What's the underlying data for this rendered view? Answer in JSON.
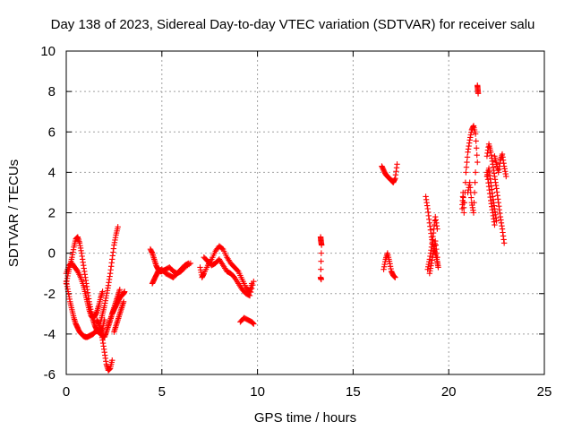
{
  "chart_data": {
    "type": "scatter",
    "title": "Day 138 of 2023, Sidereal Day-to-day VTEC variation (SDTVAR) for receiver salu",
    "xlabel": "GPS time / hours",
    "ylabel": "SDTVAR / TECUs",
    "xlim": [
      0,
      25
    ],
    "ylim": [
      -6,
      10
    ],
    "xticks": [
      0,
      5,
      10,
      15,
      20,
      25
    ],
    "yticks": [
      -6,
      -4,
      -2,
      0,
      2,
      4,
      6,
      8,
      10
    ],
    "grid": true,
    "marker": "+",
    "color": "#ff0000",
    "series": [
      {
        "name": "SDTVAR",
        "segments": [
          [
            [
              0.0,
              -1.5
            ],
            [
              0.1,
              -1.0
            ],
            [
              0.2,
              -0.6
            ],
            [
              0.3,
              -0.2
            ],
            [
              0.4,
              0.3
            ],
            [
              0.5,
              0.7
            ],
            [
              0.6,
              0.8
            ],
            [
              0.7,
              0.5
            ],
            [
              0.8,
              0.0
            ],
            [
              0.9,
              -0.6
            ],
            [
              1.0,
              -1.2
            ],
            [
              1.1,
              -1.8
            ],
            [
              1.2,
              -2.4
            ],
            [
              1.3,
              -2.9
            ],
            [
              1.4,
              -3.3
            ],
            [
              1.5,
              -3.6
            ],
            [
              1.6,
              -3.8
            ],
            [
              1.7,
              -3.9
            ],
            [
              1.8,
              -3.9
            ],
            [
              1.9,
              -3.7
            ],
            [
              2.0,
              -3.3
            ]
          ],
          [
            [
              0.0,
              -1.4
            ],
            [
              0.1,
              -1.9
            ],
            [
              0.2,
              -2.4
            ],
            [
              0.3,
              -2.8
            ],
            [
              0.4,
              -3.2
            ],
            [
              0.5,
              -3.5
            ],
            [
              0.6,
              -3.7
            ],
            [
              0.7,
              -3.9
            ],
            [
              0.8,
              -4.0
            ],
            [
              0.9,
              -4.1
            ],
            [
              1.0,
              -4.15
            ],
            [
              1.1,
              -4.15
            ],
            [
              1.2,
              -4.1
            ],
            [
              1.3,
              -4.05
            ],
            [
              1.4,
              -4.0
            ],
            [
              1.5,
              -3.9
            ],
            [
              1.6,
              -3.85
            ],
            [
              1.7,
              -3.9
            ],
            [
              1.8,
              -4.0
            ],
            [
              1.9,
              -4.1
            ],
            [
              2.0,
              -4.15
            ],
            [
              2.1,
              -3.9
            ],
            [
              2.2,
              -3.6
            ],
            [
              2.3,
              -3.3
            ],
            [
              2.4,
              -3.0
            ],
            [
              2.5,
              -2.7
            ],
            [
              2.6,
              -2.4
            ],
            [
              2.7,
              -2.1
            ],
            [
              2.8,
              -1.8
            ]
          ],
          [
            [
              0.0,
              -1.0
            ],
            [
              0.15,
              -0.6
            ],
            [
              0.3,
              -0.5
            ],
            [
              0.45,
              -0.7
            ],
            [
              0.6,
              -0.9
            ],
            [
              0.75,
              -1.2
            ],
            [
              0.9,
              -1.6
            ],
            [
              1.0,
              -2.0
            ],
            [
              1.1,
              -2.4
            ],
            [
              1.2,
              -2.8
            ],
            [
              1.3,
              -3.1
            ],
            [
              1.4,
              -3.2
            ],
            [
              1.5,
              -3.1
            ],
            [
              1.6,
              -2.9
            ],
            [
              1.7,
              -2.6
            ],
            [
              1.8,
              -2.2
            ],
            [
              1.9,
              -1.9
            ]
          ],
          [
            [
              1.6,
              -3.3
            ],
            [
              1.7,
              -3.5
            ],
            [
              1.8,
              -3.8
            ],
            [
              1.9,
              -4.3
            ],
            [
              2.0,
              -4.9
            ],
            [
              2.1,
              -5.5
            ],
            [
              2.2,
              -5.8
            ],
            [
              2.3,
              -5.7
            ],
            [
              2.4,
              -5.3
            ]
          ],
          [
            [
              1.8,
              -3.4
            ],
            [
              1.9,
              -3.0
            ],
            [
              2.0,
              -2.6
            ],
            [
              2.1,
              -2.1
            ],
            [
              2.2,
              -1.6
            ],
            [
              2.3,
              -1.0
            ],
            [
              2.4,
              -0.3
            ],
            [
              2.5,
              0.4
            ],
            [
              2.6,
              0.9
            ],
            [
              2.7,
              1.3
            ]
          ],
          [
            [
              2.2,
              -3.6
            ],
            [
              2.3,
              -3.3
            ],
            [
              2.4,
              -3.0
            ],
            [
              2.5,
              -2.8
            ],
            [
              2.6,
              -2.6
            ],
            [
              2.7,
              -2.4
            ],
            [
              2.8,
              -2.2
            ],
            [
              2.9,
              -2.1
            ],
            [
              3.0,
              -2.0
            ],
            [
              3.05,
              -1.9
            ]
          ],
          [
            [
              2.5,
              -3.9
            ],
            [
              2.6,
              -3.6
            ],
            [
              2.7,
              -3.3
            ],
            [
              2.8,
              -3.0
            ],
            [
              2.9,
              -2.7
            ],
            [
              3.0,
              -2.4
            ]
          ],
          [
            [
              4.4,
              0.2
            ],
            [
              4.5,
              0.0
            ],
            [
              4.6,
              -0.3
            ],
            [
              4.7,
              -0.6
            ],
            [
              4.8,
              -0.8
            ],
            [
              4.9,
              -0.9
            ],
            [
              5.0,
              -0.9
            ],
            [
              5.2,
              -0.8
            ],
            [
              5.4,
              -0.7
            ],
            [
              5.6,
              -0.9
            ],
            [
              5.8,
              -1.0
            ],
            [
              6.0,
              -0.8
            ],
            [
              6.2,
              -0.6
            ],
            [
              6.4,
              -0.5
            ]
          ],
          [
            [
              4.5,
              -1.5
            ],
            [
              4.6,
              -1.3
            ],
            [
              4.7,
              -1.1
            ],
            [
              4.8,
              -0.9
            ],
            [
              5.0,
              -0.8
            ],
            [
              5.2,
              -1.0
            ],
            [
              5.4,
              -1.1
            ],
            [
              5.6,
              -1.2
            ],
            [
              5.8,
              -1.0
            ],
            [
              6.0,
              -0.9
            ],
            [
              6.2,
              -0.7
            ],
            [
              6.5,
              -0.5
            ]
          ],
          [
            [
              7.0,
              -0.7
            ],
            [
              7.1,
              -1.2
            ],
            [
              7.2,
              -1.0
            ],
            [
              7.4,
              -0.6
            ],
            [
              7.6,
              -0.3
            ],
            [
              7.8,
              0.1
            ],
            [
              8.0,
              0.35
            ],
            [
              8.2,
              0.2
            ],
            [
              8.4,
              -0.2
            ],
            [
              8.6,
              -0.5
            ],
            [
              8.8,
              -0.7
            ],
            [
              9.0,
              -0.9
            ],
            [
              9.2,
              -1.3
            ],
            [
              9.4,
              -1.7
            ],
            [
              9.6,
              -1.9
            ],
            [
              9.7,
              -1.5
            ]
          ],
          [
            [
              7.2,
              -0.2
            ],
            [
              7.4,
              -0.4
            ],
            [
              7.6,
              -0.6
            ],
            [
              7.8,
              -0.5
            ],
            [
              8.0,
              -0.3
            ],
            [
              8.2,
              -0.6
            ],
            [
              8.4,
              -0.9
            ],
            [
              8.6,
              -1.0
            ],
            [
              8.8,
              -1.2
            ],
            [
              9.0,
              -1.5
            ],
            [
              9.2,
              -1.8
            ],
            [
              9.4,
              -2.0
            ],
            [
              9.6,
              -2.1
            ],
            [
              9.8,
              -1.4
            ]
          ],
          [
            [
              9.1,
              -3.4
            ],
            [
              9.3,
              -3.2
            ],
            [
              9.5,
              -3.3
            ],
            [
              9.7,
              -3.4
            ],
            [
              9.8,
              -3.5
            ]
          ],
          [
            [
              13.3,
              0.8
            ],
            [
              13.32,
              0.6
            ],
            [
              13.35,
              0.4
            ],
            [
              13.3,
              -1.2
            ],
            [
              13.33,
              -1.3
            ]
          ],
          [
            [
              16.5,
              4.3
            ],
            [
              16.6,
              4.1
            ],
            [
              16.7,
              3.9
            ],
            [
              16.8,
              3.8
            ],
            [
              16.9,
              3.7
            ],
            [
              17.0,
              3.6
            ],
            [
              17.1,
              3.5
            ],
            [
              17.2,
              3.7
            ],
            [
              17.3,
              4.4
            ]
          ],
          [
            [
              16.6,
              -0.8
            ],
            [
              16.7,
              -0.3
            ],
            [
              16.8,
              0.0
            ],
            [
              16.9,
              -0.4
            ],
            [
              17.0,
              -0.9
            ],
            [
              17.1,
              -1.1
            ],
            [
              17.2,
              -1.2
            ]
          ],
          [
            [
              18.8,
              2.8
            ],
            [
              18.9,
              2.2
            ],
            [
              19.0,
              1.5
            ],
            [
              19.1,
              0.8
            ],
            [
              19.2,
              0.3
            ],
            [
              19.3,
              0.0
            ],
            [
              19.4,
              -0.4
            ],
            [
              19.45,
              -0.7
            ]
          ],
          [
            [
              18.9,
              -0.8
            ],
            [
              19.0,
              -0.3
            ],
            [
              19.1,
              0.3
            ],
            [
              19.2,
              1.0
            ],
            [
              19.3,
              1.8
            ],
            [
              19.4,
              1.2
            ]
          ],
          [
            [
              19.0,
              -1.0
            ],
            [
              19.1,
              -0.5
            ],
            [
              19.2,
              0.1
            ],
            [
              19.3,
              0.6
            ],
            [
              19.4,
              -0.2
            ]
          ],
          [
            [
              20.7,
              2.2
            ],
            [
              20.75,
              3.0
            ],
            [
              20.8,
              2.0
            ],
            [
              20.9,
              4.0
            ],
            [
              21.0,
              5.0
            ],
            [
              21.1,
              5.6
            ],
            [
              21.2,
              6.1
            ],
            [
              21.3,
              6.3
            ],
            [
              21.4,
              5.9
            ],
            [
              21.5,
              4.5
            ]
          ],
          [
            [
              21.0,
              3.0
            ],
            [
              21.1,
              3.5
            ],
            [
              21.2,
              2.5
            ],
            [
              21.3,
              2.0
            ],
            [
              21.4,
              4.0
            ]
          ],
          [
            [
              21.5,
              8.3
            ],
            [
              21.52,
              8.1
            ],
            [
              21.54,
              7.9
            ]
          ],
          [
            [
              22.0,
              4.8
            ],
            [
              22.1,
              5.4
            ],
            [
              22.2,
              5.0
            ],
            [
              22.3,
              4.4
            ],
            [
              22.4,
              3.8
            ],
            [
              22.5,
              3.2
            ],
            [
              22.6,
              2.5
            ],
            [
              22.7,
              1.8
            ],
            [
              22.8,
              1.2
            ],
            [
              22.9,
              0.5
            ]
          ],
          [
            [
              22.0,
              3.8
            ],
            [
              22.1,
              4.2
            ],
            [
              22.2,
              3.5
            ],
            [
              22.3,
              2.8
            ],
            [
              22.4,
              2.2
            ],
            [
              22.5,
              1.6
            ]
          ],
          [
            [
              22.4,
              4.8
            ],
            [
              22.5,
              4.4
            ],
            [
              22.6,
              4.0
            ],
            [
              22.7,
              4.6
            ],
            [
              22.8,
              4.9
            ],
            [
              22.9,
              4.3
            ],
            [
              23.0,
              3.8
            ]
          ],
          [
            [
              22.0,
              4.0
            ],
            [
              22.1,
              3.3
            ],
            [
              22.2,
              2.6
            ],
            [
              22.3,
              2.0
            ],
            [
              22.4,
              1.4
            ]
          ]
        ]
      }
    ]
  }
}
